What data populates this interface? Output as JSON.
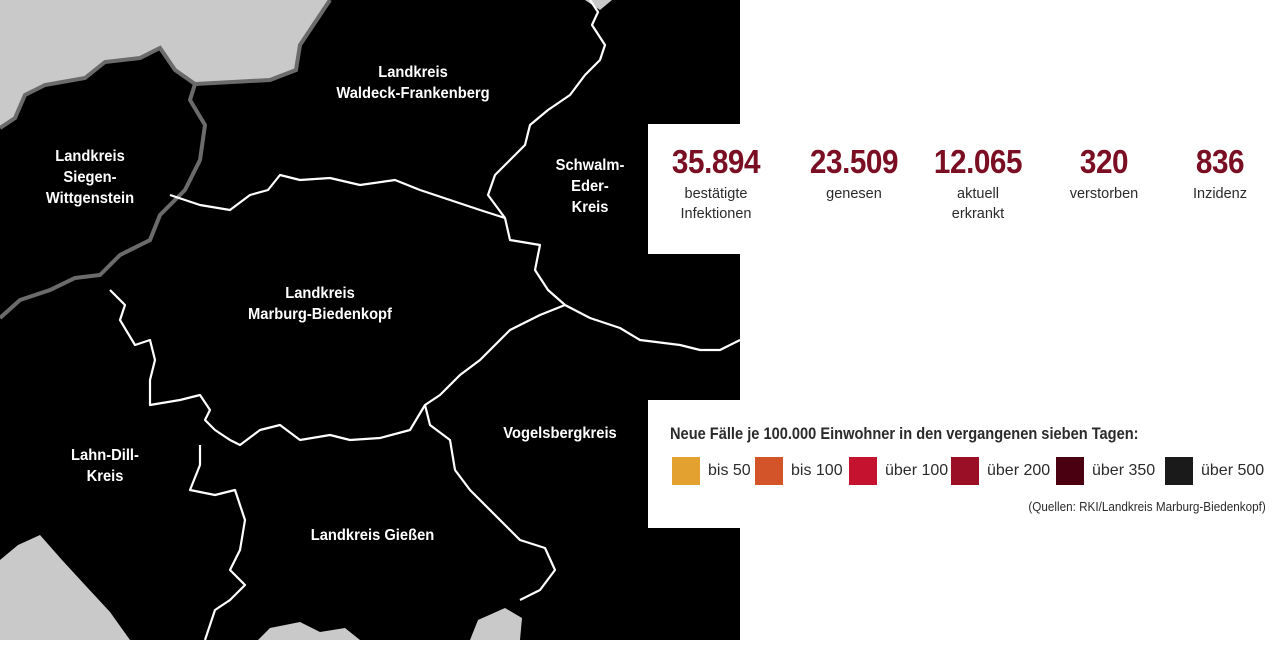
{
  "map": {
    "regions": [
      {
        "id": "waldeck",
        "label": "Landkreis\nWaldeck-Frankenberg"
      },
      {
        "id": "siegen",
        "label": "Landkreis\nSiegen-\nWittgenstein"
      },
      {
        "id": "schwalm",
        "label": "Schwalm-\nEder-\nKreis"
      },
      {
        "id": "marburg",
        "label": "Landkreis\nMarburg-Biedenkopf"
      },
      {
        "id": "lahndill",
        "label": "Lahn-Dill-\nKreis"
      },
      {
        "id": "vogelsberg",
        "label": "Vogelsbergkreis"
      },
      {
        "id": "giessen",
        "label": "Landkreis Gießen"
      }
    ]
  },
  "stats": [
    {
      "value": "35.894",
      "label": "bestätigte\nInfektionen"
    },
    {
      "value": "23.509",
      "label": "genesen"
    },
    {
      "value": "12.065",
      "label": "aktuell\nerkrankt"
    },
    {
      "value": "320",
      "label": "verstorben"
    },
    {
      "value": "836",
      "label": "Inzidenz"
    }
  ],
  "legend": {
    "title": "Neue Fälle je 100.000 Einwohner in den vergangenen sieben Tagen:",
    "items": [
      {
        "label": "bis 50",
        "color": "#e3a12f"
      },
      {
        "label": "bis 100",
        "color": "#d4542a"
      },
      {
        "label": "über 100",
        "color": "#c4122f"
      },
      {
        "label": "über 200",
        "color": "#9a0f26"
      },
      {
        "label": "über 350",
        "color": "#4a0010"
      },
      {
        "label": "über 500",
        "color": "#1a1a1a"
      }
    ],
    "source": "(Quellen: RKI/Landkreis Marburg-Biedenkopf)"
  },
  "colors": {
    "value_text": "#7a0e22",
    "region_fill": "#000000",
    "neighbor_fill": "#c9c9c9",
    "border_inner": "#ffffff",
    "border_outer": "#6b6b6b"
  }
}
